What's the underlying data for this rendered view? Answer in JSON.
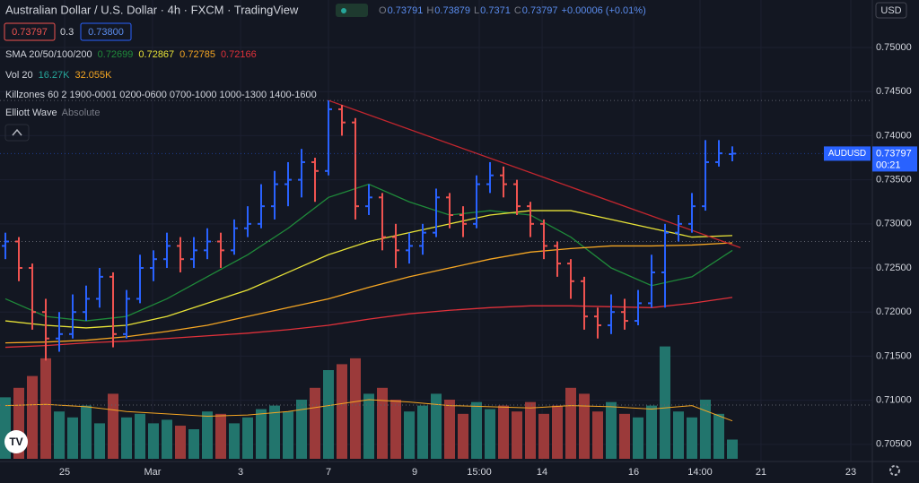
{
  "chart_data": {
    "type": "ohlc",
    "title": "Australian Dollar / U.S. Dollar · 4h · FXCM · TradingView",
    "ohlc_labels": [
      "O",
      "H",
      "L",
      "C"
    ],
    "change": "+0.00006 (+0.01%)",
    "symbol": "AUDUSD",
    "currency": "USD",
    "countdown": "00:21",
    "ask": {
      "value": 0.738,
      "label": "0.73800"
    },
    "spread": 0.3,
    "sma_label": "SMA 20/50/100/200",
    "killzones_label": "Killzones 60 2 1900-0001 0200-0600 0700-1000 1000-1300 1400-1600",
    "elliott_label": [
      "Elliott Wave",
      "Absolute"
    ],
    "up_color": "#2962ff",
    "down_color": "#ef5350",
    "ohlc": [
      [
        0.7275,
        0.729,
        0.726,
        0.728
      ],
      [
        0.728,
        0.7285,
        0.7235,
        0.725
      ],
      [
        0.725,
        0.7255,
        0.718,
        0.72
      ],
      [
        0.72,
        0.7215,
        0.7145,
        0.717
      ],
      [
        0.717,
        0.72,
        0.7155,
        0.7175
      ],
      [
        0.7175,
        0.722,
        0.717,
        0.72
      ],
      [
        0.72,
        0.723,
        0.719,
        0.7215
      ],
      [
        0.7215,
        0.725,
        0.7205,
        0.724
      ],
      [
        0.724,
        0.7245,
        0.716,
        0.7175
      ],
      [
        0.7175,
        0.7225,
        0.717,
        0.7215
      ],
      [
        0.7215,
        0.7265,
        0.721,
        0.725
      ],
      [
        0.725,
        0.727,
        0.7235,
        0.726
      ],
      [
        0.726,
        0.729,
        0.725,
        0.7275
      ],
      [
        0.7275,
        0.7285,
        0.7245,
        0.726
      ],
      [
        0.726,
        0.7285,
        0.725,
        0.727
      ],
      [
        0.727,
        0.7295,
        0.726,
        0.728
      ],
      [
        0.728,
        0.729,
        0.725,
        0.727
      ],
      [
        0.727,
        0.7305,
        0.7265,
        0.7295
      ],
      [
        0.7295,
        0.732,
        0.7285,
        0.73
      ],
      [
        0.73,
        0.7345,
        0.7295,
        0.732
      ],
      [
        0.732,
        0.736,
        0.7305,
        0.7345
      ],
      [
        0.7345,
        0.737,
        0.732,
        0.735
      ],
      [
        0.735,
        0.7385,
        0.733,
        0.737
      ],
      [
        0.737,
        0.7375,
        0.7325,
        0.736
      ],
      [
        0.736,
        0.744,
        0.7355,
        0.743
      ],
      [
        0.743,
        0.7435,
        0.74,
        0.7415
      ],
      [
        0.7415,
        0.742,
        0.7305,
        0.732
      ],
      [
        0.732,
        0.7345,
        0.731,
        0.733
      ],
      [
        0.733,
        0.7335,
        0.727,
        0.7285
      ],
      [
        0.7285,
        0.73,
        0.725,
        0.727
      ],
      [
        0.727,
        0.729,
        0.7255,
        0.7275
      ],
      [
        0.7275,
        0.73,
        0.7265,
        0.729
      ],
      [
        0.729,
        0.734,
        0.7285,
        0.733
      ],
      [
        0.733,
        0.7335,
        0.7295,
        0.731
      ],
      [
        0.731,
        0.732,
        0.7285,
        0.73
      ],
      [
        0.73,
        0.7355,
        0.7295,
        0.7345
      ],
      [
        0.7345,
        0.737,
        0.7335,
        0.7355
      ],
      [
        0.7355,
        0.7365,
        0.733,
        0.7345
      ],
      [
        0.7345,
        0.735,
        0.731,
        0.732
      ],
      [
        0.732,
        0.7325,
        0.7285,
        0.73
      ],
      [
        0.73,
        0.7305,
        0.726,
        0.7275
      ],
      [
        0.7275,
        0.728,
        0.724,
        0.7255
      ],
      [
        0.7255,
        0.726,
        0.7215,
        0.7235
      ],
      [
        0.7235,
        0.724,
        0.718,
        0.7195
      ],
      [
        0.7195,
        0.7205,
        0.717,
        0.7185
      ],
      [
        0.7185,
        0.722,
        0.7175,
        0.72
      ],
      [
        0.72,
        0.7215,
        0.718,
        0.719
      ],
      [
        0.719,
        0.7225,
        0.7185,
        0.721
      ],
      [
        0.721,
        0.7265,
        0.7205,
        0.7245
      ],
      [
        0.7245,
        0.73,
        0.7205,
        0.729
      ],
      [
        0.729,
        0.731,
        0.728,
        0.73
      ],
      [
        0.73,
        0.7335,
        0.729,
        0.732
      ],
      [
        0.732,
        0.7395,
        0.7315,
        0.737
      ],
      [
        0.737,
        0.7395,
        0.7365,
        0.738
      ],
      [
        0.73791,
        0.73879,
        0.7371,
        0.73797
      ]
    ],
    "volume": {
      "values": [
        52000,
        60000,
        70000,
        85000,
        40000,
        35000,
        45000,
        30000,
        55000,
        35000,
        38000,
        30000,
        33000,
        28000,
        25000,
        40000,
        38000,
        30000,
        35000,
        42000,
        45000,
        40000,
        50000,
        60000,
        75000,
        80000,
        85000,
        55000,
        60000,
        50000,
        40000,
        45000,
        55000,
        50000,
        38000,
        48000,
        42000,
        45000,
        40000,
        48000,
        38000,
        45000,
        60000,
        55000,
        40000,
        48000,
        38000,
        35000,
        45000,
        95000,
        40000,
        35000,
        50000,
        38000,
        16270
      ],
      "ylim": [
        0,
        100000
      ],
      "up_color": "#22756d",
      "down_color": "#9b3a3a",
      "ma": {
        "color": "#f5a623",
        "values": [
          45000,
          46000,
          44000,
          40000,
          38000,
          36000,
          37000,
          40000,
          45000,
          50000,
          48000,
          45000,
          44000,
          43000,
          45000,
          44000,
          42000,
          45000,
          32055
        ]
      },
      "legend": {
        "name": "Vol 20",
        "values": [
          {
            "value": 16270,
            "label": "16.27K",
            "color": "#26a69a"
          },
          {
            "value": 32055,
            "label": "32.055K",
            "color": "#f5a623"
          }
        ]
      }
    },
    "sma_x": [
      0,
      3,
      6,
      9,
      12,
      15,
      18,
      21,
      24,
      27,
      30,
      33,
      36,
      39,
      42,
      45,
      48,
      51,
      54
    ],
    "sma": [
      {
        "color": "#1f8a3a",
        "values": [
          0.7215,
          0.7195,
          0.719,
          0.7195,
          0.7215,
          0.724,
          0.7265,
          0.7295,
          0.733,
          0.7345,
          0.7325,
          0.731,
          0.7315,
          0.731,
          0.7285,
          0.725,
          0.723,
          0.724,
          0.72699
        ]
      },
      {
        "color": "#e8e337",
        "values": [
          0.719,
          0.7185,
          0.7182,
          0.7185,
          0.7195,
          0.721,
          0.7225,
          0.7245,
          0.7265,
          0.728,
          0.729,
          0.73,
          0.731,
          0.7315,
          0.7315,
          0.7305,
          0.7295,
          0.7285,
          0.72867
        ]
      },
      {
        "color": "#f5a623",
        "values": [
          0.7165,
          0.7166,
          0.7168,
          0.7172,
          0.7178,
          0.7185,
          0.7195,
          0.7205,
          0.7215,
          0.7228,
          0.724,
          0.725,
          0.726,
          0.7268,
          0.7272,
          0.7275,
          0.7275,
          0.7276,
          0.72785
        ]
      },
      {
        "color": "#e0313a",
        "values": [
          0.716,
          0.7162,
          0.7165,
          0.7167,
          0.717,
          0.7173,
          0.7176,
          0.718,
          0.7185,
          0.7192,
          0.7198,
          0.7202,
          0.7205,
          0.7207,
          0.7207,
          0.7206,
          0.7205,
          0.721,
          0.72166
        ]
      }
    ],
    "trendline": {
      "x": [
        24,
        54.6
      ],
      "values": [
        0.744,
        0.7273
      ],
      "color": "#c2262e"
    },
    "price_lines": [
      0.744,
      0.728,
      0.70945
    ],
    "xlim": [
      -0.4,
      64.4
    ],
    "xticks": [
      {
        "value": 4.4,
        "label": "25"
      },
      {
        "value": 10.93,
        "label": "Mar"
      },
      {
        "value": 17.47,
        "label": "3"
      },
      {
        "value": 24,
        "label": "7"
      },
      {
        "value": 30.4,
        "label": "9"
      },
      {
        "value": 35.2,
        "label": "15:00"
      },
      {
        "value": 39.87,
        "label": "14"
      },
      {
        "value": 46.67,
        "label": "16"
      },
      {
        "value": 51.6,
        "label": "14:00"
      },
      {
        "value": 56.13,
        "label": "21"
      },
      {
        "value": 62.8,
        "label": "23"
      }
    ],
    "ylim": [
      0.70305,
      0.75539
    ],
    "yticks": [
      {
        "value": 0.75,
        "label": "0.75000"
      },
      {
        "value": 0.745,
        "label": "0.74500"
      },
      {
        "value": 0.74,
        "label": "0.74000"
      },
      {
        "value": 0.735,
        "label": "0.73500"
      },
      {
        "value": 0.73,
        "label": "0.73000"
      },
      {
        "value": 0.725,
        "label": "0.72500"
      },
      {
        "value": 0.72,
        "label": "0.72000"
      },
      {
        "value": 0.715,
        "label": "0.71500"
      },
      {
        "value": 0.71,
        "label": "0.71000"
      },
      {
        "value": 0.705,
        "label": "0.70500"
      }
    ]
  }
}
